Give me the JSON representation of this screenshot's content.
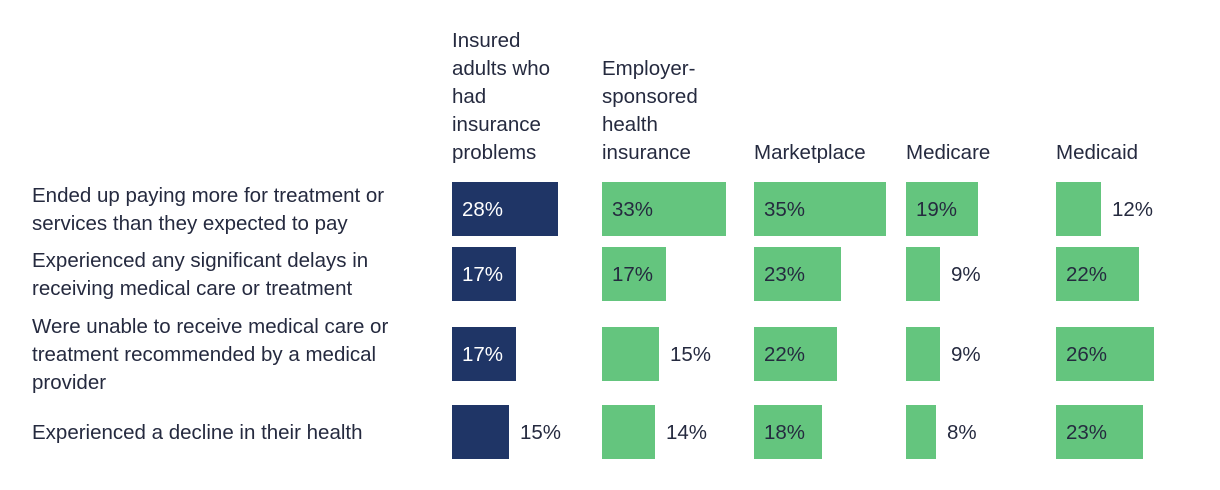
{
  "chart_data": {
    "type": "bar",
    "title": "",
    "columns": [
      {
        "name": "Insured adults who had insurance problems",
        "color": "#1f3566"
      },
      {
        "name": "Employer-sponsored health insurance",
        "color": "#64c57e"
      },
      {
        "name": "Marketplace",
        "color": "#64c57e"
      },
      {
        "name": "Medicare",
        "color": "#64c57e"
      },
      {
        "name": "Medicaid",
        "color": "#64c57e"
      }
    ],
    "header_lines": [
      [
        "Insured",
        "adults who",
        "had",
        "insurance",
        "problems"
      ],
      [
        "Employer-",
        "sponsored",
        "health",
        "insurance"
      ],
      [
        "Marketplace"
      ],
      [
        "Medicare"
      ],
      [
        "Medicaid"
      ]
    ],
    "rows": [
      {
        "label_lines": [
          "Ended up paying more for treatment or",
          "services than they expected to pay"
        ],
        "labels": [
          "28%",
          "33%",
          "35%",
          "19%",
          "12%"
        ],
        "values": [
          28,
          33,
          35,
          19,
          12
        ]
      },
      {
        "label_lines": [
          "Experienced any significant delays in",
          "receiving medical care or treatment"
        ],
        "labels": [
          "17%",
          "17%",
          "23%",
          "9%",
          "22%"
        ],
        "values": [
          17,
          17,
          23,
          9,
          22
        ]
      },
      {
        "label_lines": [
          "Were unable to receive medical care or",
          "treatment recommended by a medical",
          "provider"
        ],
        "labels": [
          "17%",
          "15%",
          "22%",
          "9%",
          "26%"
        ],
        "values": [
          17,
          15,
          22,
          9,
          26
        ]
      },
      {
        "label_lines": [
          "Experienced a decline in their health"
        ],
        "labels": [
          "15%",
          "14%",
          "18%",
          "8%",
          "23%"
        ],
        "values": [
          15,
          14,
          18,
          8,
          23
        ]
      }
    ],
    "value_max": 35
  }
}
